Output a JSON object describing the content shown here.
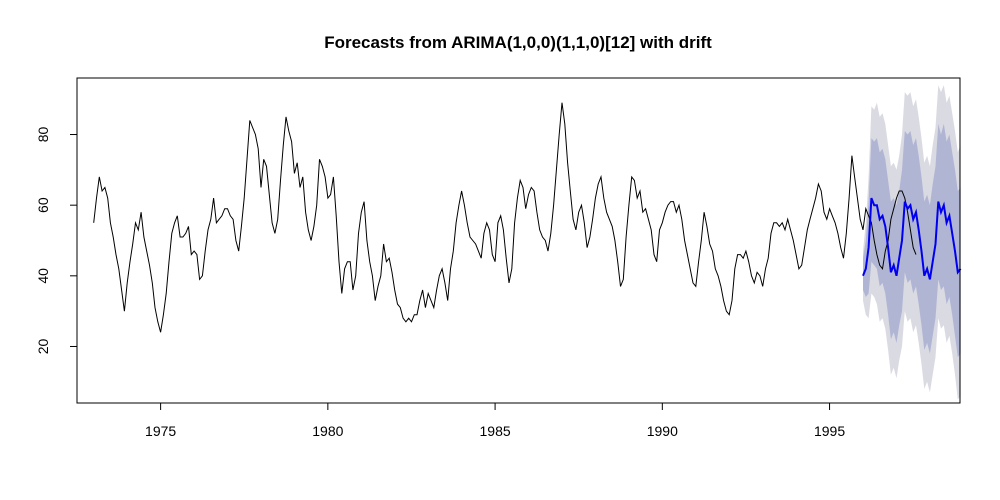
{
  "chart_data": {
    "type": "line",
    "title": "Forecasts from ARIMA(1,0,0)(1,1,0)[12] with drift",
    "xlabel": "",
    "ylabel": "",
    "xlim": [
      1972.5,
      1998.9
    ],
    "ylim": [
      4,
      96
    ],
    "x_ticks": [
      1975,
      1980,
      1985,
      1990,
      1995
    ],
    "y_ticks": [
      20,
      40,
      60,
      80
    ],
    "grid": false,
    "legend": "none",
    "colors": {
      "history": "#000000",
      "forecast": "#0000ee",
      "band80": "#b0b5d4",
      "band95": "#dadae3"
    },
    "history": {
      "start": 1973.0,
      "frequency": 12,
      "values": [
        55,
        62,
        68,
        64,
        65,
        62,
        55,
        51,
        46,
        42,
        36,
        30,
        38,
        44,
        49,
        55,
        53,
        58,
        51,
        47,
        43,
        38,
        31,
        27,
        24,
        29,
        35,
        44,
        52,
        55,
        57,
        51,
        51,
        52,
        54,
        46,
        47,
        46,
        39,
        40,
        47,
        53,
        56,
        62,
        55,
        56,
        57,
        59,
        59,
        57,
        56,
        50,
        47,
        54,
        62,
        73,
        84,
        82,
        80,
        76,
        65,
        73,
        71,
        63,
        55,
        52,
        56,
        67,
        77,
        85,
        81,
        78,
        69,
        72,
        65,
        68,
        58,
        53,
        50,
        54,
        60,
        73,
        71,
        68,
        62,
        63,
        68,
        57,
        44,
        35,
        42,
        44,
        44,
        36,
        40,
        52,
        58,
        61,
        50,
        44,
        40,
        33,
        37,
        40,
        49,
        44,
        45,
        41,
        36,
        32,
        31,
        28,
        27,
        28,
        27,
        29,
        29,
        33,
        36,
        31,
        35,
        33,
        31,
        36,
        40,
        42,
        38,
        33,
        42,
        47,
        55,
        60,
        64,
        60,
        55,
        51,
        50,
        49,
        47,
        45,
        52,
        55,
        53,
        46,
        44,
        55,
        57,
        53,
        45,
        38,
        42,
        55,
        62,
        67,
        65,
        59,
        63,
        65,
        64,
        58,
        53,
        51,
        50,
        47,
        52,
        60,
        70,
        80,
        89,
        83,
        72,
        64,
        56,
        53,
        58,
        60,
        55,
        48,
        51,
        56,
        62,
        66,
        68,
        62,
        58,
        56,
        54,
        50,
        44,
        37,
        39,
        51,
        60,
        68,
        67,
        62,
        64,
        58,
        59,
        56,
        53,
        46,
        44,
        53,
        55,
        58,
        60,
        61,
        61,
        58,
        60,
        56,
        50,
        46,
        42,
        38,
        37,
        44,
        50,
        58,
        54,
        49,
        47,
        42,
        40,
        37,
        33,
        30,
        29,
        33,
        42,
        46,
        46,
        45,
        47,
        44,
        40,
        38,
        41,
        40,
        37,
        42,
        45,
        52,
        55,
        55,
        54,
        55,
        53,
        56,
        53,
        50,
        46,
        42,
        43,
        48,
        53,
        56,
        59,
        62,
        66,
        64,
        58,
        56,
        59,
        57,
        55,
        52,
        48,
        45,
        52,
        62,
        74,
        68,
        62,
        56,
        53,
        59,
        57,
        55,
        50,
        46,
        43,
        42,
        47,
        50,
        56,
        59,
        62,
        64,
        64,
        62,
        58,
        53,
        48,
        46
      ]
    },
    "forecast": {
      "start": 1996.0,
      "frequency": 12,
      "mean": [
        40,
        42,
        48,
        62,
        60,
        60,
        56,
        57,
        54,
        48,
        41,
        43,
        40,
        45,
        50,
        61,
        59,
        60,
        56,
        58,
        53,
        47,
        40,
        42,
        39,
        44,
        49,
        61,
        58,
        60,
        55,
        57,
        52,
        47,
        41,
        42
      ],
      "lo80": [
        36,
        34,
        35,
        44,
        43,
        42,
        37,
        38,
        35,
        29,
        22,
        24,
        21,
        26,
        30,
        41,
        38,
        39,
        35,
        37,
        32,
        26,
        19,
        21,
        18,
        23,
        28,
        39,
        36,
        37,
        32,
        34,
        29,
        23,
        17,
        18
      ],
      "hi80": [
        45,
        50,
        61,
        79,
        78,
        79,
        75,
        76,
        73,
        67,
        61,
        62,
        60,
        64,
        70,
        81,
        80,
        81,
        77,
        79,
        74,
        68,
        61,
        63,
        60,
        66,
        71,
        83,
        80,
        83,
        78,
        80,
        75,
        70,
        64,
        65
      ],
      "lo95": [
        33,
        29,
        28,
        35,
        34,
        32,
        27,
        28,
        25,
        19,
        12,
        14,
        11,
        16,
        20,
        30,
        27,
        28,
        24,
        26,
        21,
        15,
        8,
        10,
        7,
        12,
        17,
        28,
        25,
        26,
        21,
        23,
        18,
        12,
        5,
        6
      ],
      "hi95": [
        47,
        55,
        68,
        88,
        87,
        89,
        85,
        86,
        83,
        77,
        71,
        72,
        70,
        74,
        80,
        92,
        91,
        92,
        88,
        90,
        85,
        79,
        72,
        74,
        71,
        77,
        82,
        94,
        92,
        94,
        89,
        91,
        86,
        81,
        75,
        77
      ]
    }
  }
}
